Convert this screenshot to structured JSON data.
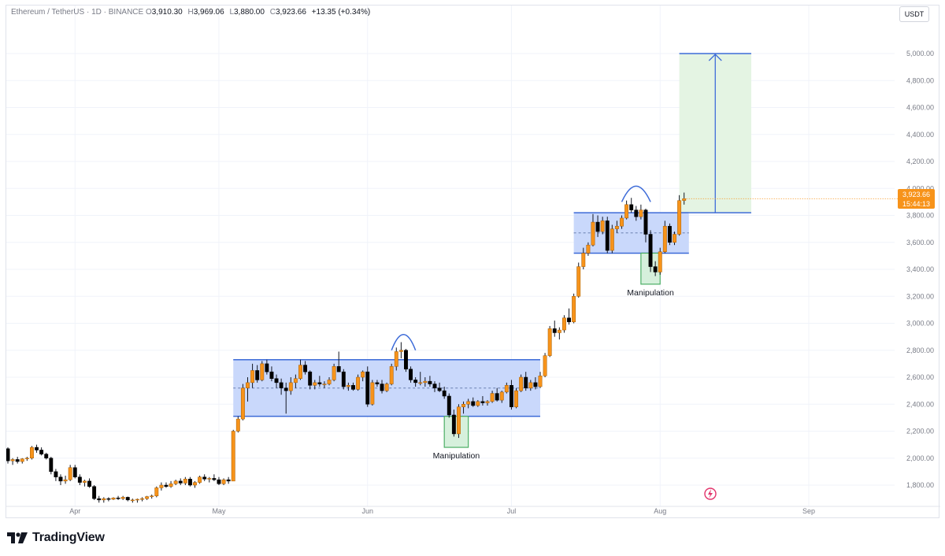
{
  "legend": {
    "symbol": "Ethereum / TetherUS · 1D · BINANCE",
    "o_key": "O",
    "o_val": "3,910.30",
    "h_key": "H",
    "h_val": "3,969.06",
    "l_key": "L",
    "l_val": "3,880.00",
    "c_key": "C",
    "c_val": "3,923.66",
    "change": "+13.35 (+0.34%)"
  },
  "currency": "USDT",
  "last_price": {
    "price": "3,923.66",
    "countdown": "15:44:13"
  },
  "brand": "TradingView",
  "colors": {
    "up": "#f7931a",
    "down": "#000000",
    "range_fill": "#c9d8fb",
    "range_line": "#3d6bd8",
    "manip_fill": "#d6f0dc",
    "manip_line": "#4caf65",
    "target_fill": "#e4f4e3",
    "target_line": "#3d6bd8",
    "grid": "#f0f3fa"
  },
  "chart_data": {
    "type": "candlestick",
    "symbol": "ETH/USDT",
    "timeframe": "1D",
    "ylim": [
      1700,
      5100
    ],
    "y_ticks": [
      "1,800.00",
      "2,000.00",
      "2,200.00",
      "2,400.00",
      "2,600.00",
      "2,800.00",
      "3,000.00",
      "3,200.00",
      "3,400.00",
      "3,600.00",
      "3,800.00",
      "4,000.00",
      "4,200.00",
      "4,400.00",
      "4,600.00",
      "4,800.00",
      "5,000.00"
    ],
    "y_tick_values": [
      1800,
      2000,
      2200,
      2400,
      2600,
      2800,
      3000,
      3200,
      3400,
      3600,
      3800,
      4000,
      4200,
      4400,
      4600,
      4800,
      5000
    ],
    "x_ticks": [
      {
        "label": "Apr",
        "day": 14
      },
      {
        "label": "May",
        "day": 44
      },
      {
        "label": "Jun",
        "day": 75
      },
      {
        "label": "Jul",
        "day": 105
      },
      {
        "label": "Aug",
        "day": 136
      },
      {
        "label": "Sep",
        "day": 167
      }
    ],
    "candles": [
      [
        2070,
        2080,
        1960,
        1980
      ],
      [
        1980,
        2000,
        1950,
        1990
      ],
      [
        1990,
        2010,
        1960,
        1975
      ],
      [
        1975,
        2000,
        1960,
        1995
      ],
      [
        1995,
        2010,
        1980,
        2000
      ],
      [
        2000,
        2090,
        1990,
        2080
      ],
      [
        2080,
        2100,
        2040,
        2060
      ],
      [
        2060,
        2080,
        2020,
        2030
      ],
      [
        2030,
        2040,
        1990,
        2000
      ],
      [
        2000,
        2010,
        1880,
        1900
      ],
      [
        1900,
        1920,
        1830,
        1860
      ],
      [
        1860,
        1880,
        1800,
        1830
      ],
      [
        1830,
        1870,
        1810,
        1840
      ],
      [
        1840,
        1950,
        1830,
        1930
      ],
      [
        1930,
        1950,
        1850,
        1860
      ],
      [
        1860,
        1880,
        1800,
        1820
      ],
      [
        1820,
        1840,
        1790,
        1830
      ],
      [
        1830,
        1850,
        1780,
        1790
      ],
      [
        1790,
        1800,
        1690,
        1700
      ],
      [
        1700,
        1720,
        1670,
        1690
      ],
      [
        1690,
        1710,
        1670,
        1700
      ],
      [
        1700,
        1710,
        1680,
        1695
      ],
      [
        1695,
        1710,
        1690,
        1705
      ],
      [
        1705,
        1720,
        1690,
        1700
      ],
      [
        1700,
        1720,
        1690,
        1710
      ],
      [
        1710,
        1715,
        1680,
        1690
      ],
      [
        1690,
        1700,
        1670,
        1690
      ],
      [
        1690,
        1700,
        1670,
        1695
      ],
      [
        1695,
        1710,
        1680,
        1700
      ],
      [
        1700,
        1720,
        1690,
        1715
      ],
      [
        1715,
        1730,
        1700,
        1720
      ],
      [
        1720,
        1790,
        1710,
        1780
      ],
      [
        1780,
        1820,
        1760,
        1800
      ],
      [
        1800,
        1820,
        1780,
        1790
      ],
      [
        1790,
        1830,
        1780,
        1810
      ],
      [
        1810,
        1840,
        1800,
        1830
      ],
      [
        1830,
        1850,
        1800,
        1815
      ],
      [
        1815,
        1860,
        1800,
        1845
      ],
      [
        1845,
        1860,
        1790,
        1800
      ],
      [
        1800,
        1830,
        1780,
        1820
      ],
      [
        1820,
        1870,
        1810,
        1860
      ],
      [
        1860,
        1880,
        1830,
        1845
      ],
      [
        1845,
        1860,
        1820,
        1850
      ],
      [
        1850,
        1880,
        1830,
        1840
      ],
      [
        1840,
        1860,
        1800,
        1810
      ],
      [
        1810,
        1850,
        1800,
        1840
      ],
      [
        1840,
        1860,
        1810,
        1830
      ],
      [
        1830,
        2210,
        1830,
        2200
      ],
      [
        2200,
        2310,
        2190,
        2290
      ],
      [
        2290,
        2550,
        2280,
        2520
      ],
      [
        2520,
        2600,
        2420,
        2560
      ],
      [
        2560,
        2700,
        2520,
        2650
      ],
      [
        2650,
        2690,
        2560,
        2580
      ],
      [
        2580,
        2720,
        2570,
        2700
      ],
      [
        2700,
        2730,
        2620,
        2640
      ],
      [
        2640,
        2680,
        2570,
        2590
      ],
      [
        2590,
        2620,
        2520,
        2560
      ],
      [
        2560,
        2590,
        2470,
        2520
      ],
      [
        2520,
        2560,
        2330,
        2500
      ],
      [
        2500,
        2600,
        2470,
        2560
      ],
      [
        2560,
        2620,
        2520,
        2590
      ],
      [
        2590,
        2730,
        2580,
        2690
      ],
      [
        2690,
        2720,
        2620,
        2640
      ],
      [
        2640,
        2650,
        2510,
        2540
      ],
      [
        2540,
        2580,
        2510,
        2560
      ],
      [
        2560,
        2610,
        2530,
        2550
      ],
      [
        2550,
        2570,
        2520,
        2550
      ],
      [
        2550,
        2600,
        2540,
        2580
      ],
      [
        2580,
        2700,
        2570,
        2680
      ],
      [
        2680,
        2790,
        2650,
        2640
      ],
      [
        2640,
        2660,
        2510,
        2530
      ],
      [
        2530,
        2560,
        2500,
        2540
      ],
      [
        2540,
        2560,
        2500,
        2510
      ],
      [
        2510,
        2620,
        2500,
        2600
      ],
      [
        2600,
        2650,
        2570,
        2640
      ],
      [
        2640,
        2680,
        2380,
        2400
      ],
      [
        2400,
        2580,
        2390,
        2560
      ],
      [
        2560,
        2580,
        2530,
        2550
      ],
      [
        2550,
        2580,
        2480,
        2500
      ],
      [
        2500,
        2560,
        2490,
        2550
      ],
      [
        2550,
        2700,
        2540,
        2680
      ],
      [
        2680,
        2820,
        2650,
        2790
      ],
      [
        2790,
        2860,
        2740,
        2800
      ],
      [
        2800,
        2810,
        2640,
        2660
      ],
      [
        2660,
        2680,
        2560,
        2580
      ],
      [
        2580,
        2600,
        2530,
        2560
      ],
      [
        2560,
        2640,
        2540,
        2560
      ],
      [
        2560,
        2600,
        2530,
        2570
      ],
      [
        2570,
        2610,
        2530,
        2550
      ],
      [
        2550,
        2570,
        2490,
        2520
      ],
      [
        2520,
        2560,
        2490,
        2500
      ],
      [
        2500,
        2530,
        2440,
        2460
      ],
      [
        2460,
        2480,
        2300,
        2320
      ],
      [
        2320,
        2360,
        2160,
        2180
      ],
      [
        2180,
        2400,
        2150,
        2380
      ],
      [
        2380,
        2420,
        2330,
        2400
      ],
      [
        2400,
        2440,
        2370,
        2420
      ],
      [
        2420,
        2450,
        2380,
        2390
      ],
      [
        2390,
        2430,
        2380,
        2420
      ],
      [
        2420,
        2460,
        2390,
        2410
      ],
      [
        2410,
        2430,
        2390,
        2420
      ],
      [
        2420,
        2500,
        2410,
        2480
      ],
      [
        2480,
        2520,
        2420,
        2430
      ],
      [
        2430,
        2500,
        2410,
        2490
      ],
      [
        2490,
        2560,
        2480,
        2540
      ],
      [
        2540,
        2580,
        2360,
        2380
      ],
      [
        2380,
        2520,
        2370,
        2500
      ],
      [
        2500,
        2620,
        2490,
        2600
      ],
      [
        2600,
        2640,
        2500,
        2520
      ],
      [
        2520,
        2580,
        2500,
        2560
      ],
      [
        2560,
        2600,
        2510,
        2530
      ],
      [
        2530,
        2640,
        2520,
        2610
      ],
      [
        2610,
        2780,
        2600,
        2760
      ],
      [
        2760,
        2980,
        2750,
        2960
      ],
      [
        2960,
        3020,
        2900,
        2930
      ],
      [
        2930,
        2970,
        2880,
        2950
      ],
      [
        2950,
        3060,
        2930,
        3040
      ],
      [
        3040,
        3110,
        2990,
        3010
      ],
      [
        3010,
        3220,
        3000,
        3200
      ],
      [
        3200,
        3450,
        3190,
        3420
      ],
      [
        3420,
        3560,
        3400,
        3520
      ],
      [
        3520,
        3600,
        3500,
        3580
      ],
      [
        3580,
        3810,
        3570,
        3750
      ],
      [
        3750,
        3800,
        3640,
        3680
      ],
      [
        3680,
        3790,
        3660,
        3760
      ],
      [
        3760,
        3790,
        3520,
        3540
      ],
      [
        3540,
        3730,
        3520,
        3700
      ],
      [
        3700,
        3760,
        3670,
        3720
      ],
      [
        3720,
        3800,
        3700,
        3780
      ],
      [
        3780,
        3910,
        3770,
        3880
      ],
      [
        3880,
        3930,
        3820,
        3840
      ],
      [
        3840,
        3870,
        3760,
        3790
      ],
      [
        3790,
        3880,
        3770,
        3840
      ],
      [
        3840,
        3850,
        3600,
        3660
      ],
      [
        3660,
        3690,
        3380,
        3420
      ],
      [
        3420,
        3460,
        3350,
        3380
      ],
      [
        3380,
        3560,
        3360,
        3530
      ],
      [
        3530,
        3760,
        3520,
        3720
      ],
      [
        3720,
        3740,
        3580,
        3600
      ],
      [
        3600,
        3680,
        3580,
        3660
      ],
      [
        3660,
        3950,
        3650,
        3910
      ],
      [
        3910.3,
        3969.06,
        3880.0,
        3923.66
      ]
    ],
    "zones": [
      {
        "type": "range",
        "day_start": 47,
        "day_end": 111,
        "price_top": 2730,
        "price_bottom": 2310,
        "mid": 2520
      },
      {
        "type": "range",
        "day_start": 118,
        "day_end": 142,
        "price_top": 3820,
        "price_bottom": 3520,
        "mid": 3670
      }
    ],
    "manipulation_zones": [
      {
        "label": "Manipulation",
        "day_start": 91,
        "day_end": 96,
        "price_top": 2310,
        "price_bottom": 2080
      },
      {
        "label": "Manipulation",
        "day_start": 132,
        "day_end": 136,
        "price_top": 3520,
        "price_bottom": 3290
      }
    ],
    "arcs": [
      {
        "day_start": 80,
        "day_end": 85,
        "price_base": 2800,
        "price_peak": 2870
      },
      {
        "day_start": 128,
        "day_end": 134,
        "price_base": 3900,
        "price_peak": 3970
      }
    ],
    "target": {
      "day_start": 140,
      "day_end": 155,
      "price_from": 3820,
      "price_to": 5000
    },
    "watermark": "TradingView"
  }
}
